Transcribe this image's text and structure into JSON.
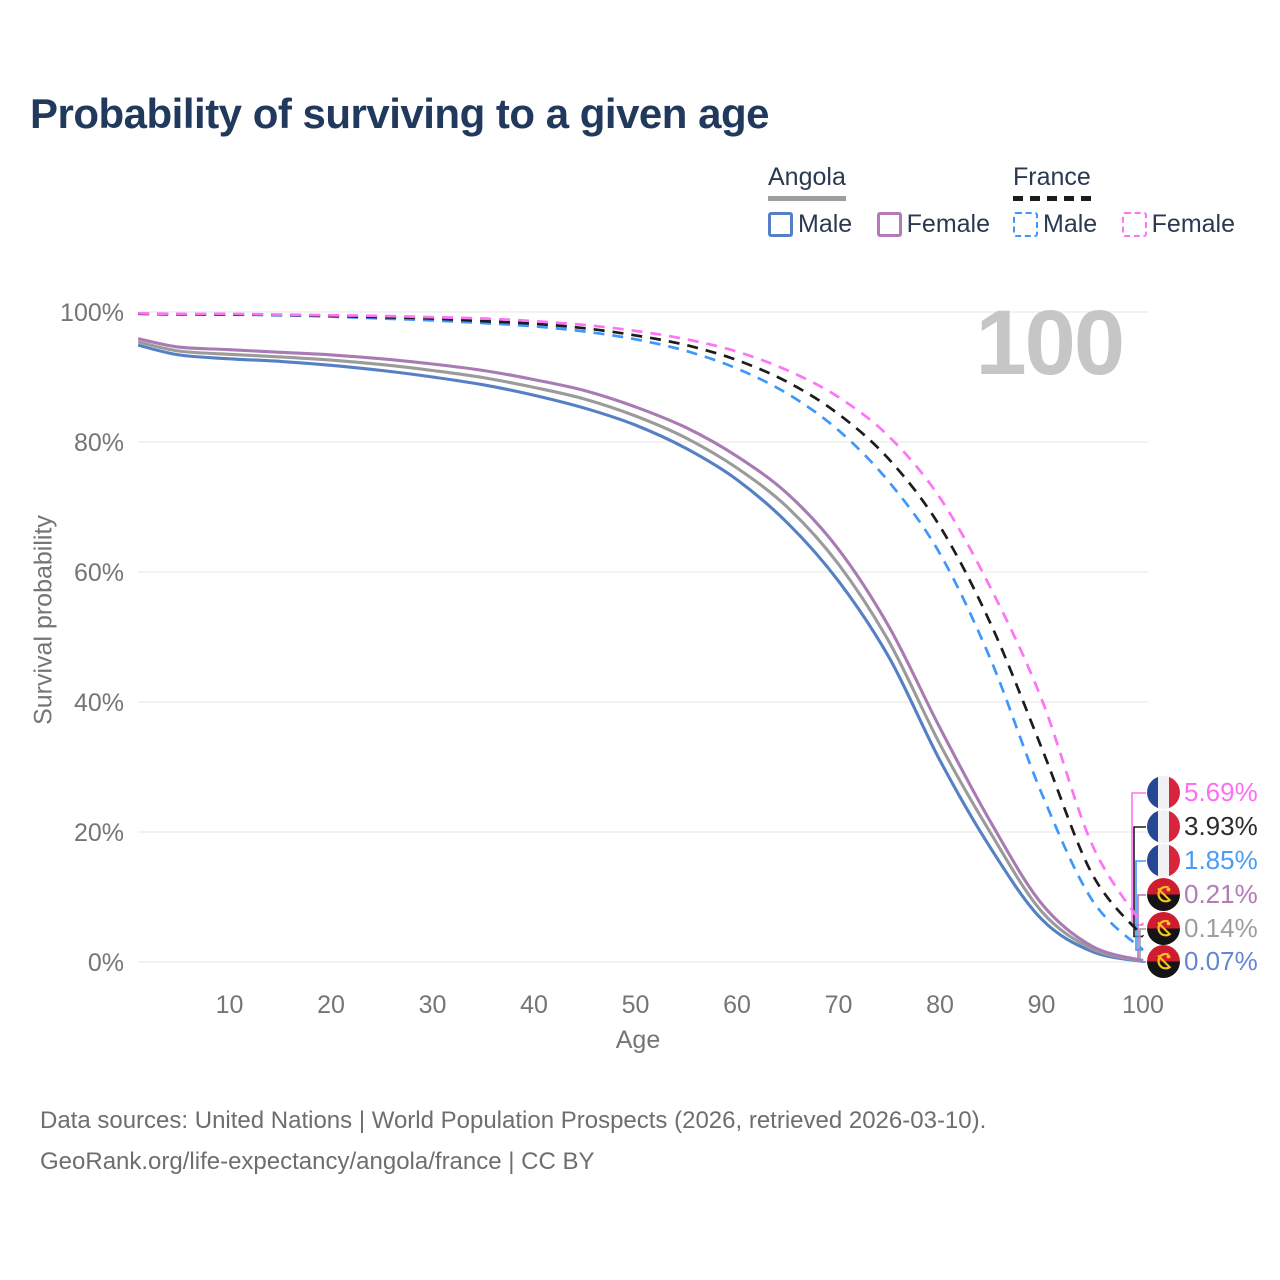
{
  "title": "Probability of surviving to a given age",
  "watermark": "100",
  "legend": {
    "groups": [
      {
        "country": "Angola",
        "line_style": "solid",
        "underline_color": "#9e9e9e",
        "items": [
          {
            "label": "Male",
            "color": "#5580c5"
          },
          {
            "label": "Female",
            "color": "#b379b8"
          }
        ]
      },
      {
        "country": "France",
        "line_style": "dashed",
        "underline_color": "#1c1c1c",
        "items": [
          {
            "label": "Male",
            "color": "#3e97fb"
          },
          {
            "label": "Female",
            "color": "#fe74f7"
          }
        ]
      }
    ]
  },
  "axes": {
    "y_title": "Survival probability",
    "x_title": "Age",
    "y_ticks": [
      {
        "label": "100%",
        "value": 100
      },
      {
        "label": "80%",
        "value": 80
      },
      {
        "label": "60%",
        "value": 60
      },
      {
        "label": "40%",
        "value": 40
      },
      {
        "label": "20%",
        "value": 20
      },
      {
        "label": "0%",
        "value": 0
      }
    ],
    "x_ticks": [
      {
        "label": "10",
        "value": 10
      },
      {
        "label": "20",
        "value": 20
      },
      {
        "label": "30",
        "value": 30
      },
      {
        "label": "40",
        "value": 40
      },
      {
        "label": "50",
        "value": 50
      },
      {
        "label": "60",
        "value": 60
      },
      {
        "label": "70",
        "value": 70
      },
      {
        "label": "80",
        "value": 80
      },
      {
        "label": "90",
        "value": 90
      },
      {
        "label": "100",
        "value": 100
      }
    ]
  },
  "end_labels": [
    {
      "series": "France Female",
      "flag": "france",
      "text": "5.69%",
      "color": "#fe6ef5"
    },
    {
      "series": "France Both sexes",
      "flag": "france",
      "text": "3.93%",
      "color": "#2b2b2b"
    },
    {
      "series": "France Male",
      "flag": "france",
      "text": "1.85%",
      "color": "#4b9bf5"
    },
    {
      "series": "Angola Female",
      "flag": "angola",
      "text": "0.21%",
      "color": "#b57bb5"
    },
    {
      "series": "Angola Both sexes",
      "flag": "angola",
      "text": "0.14%",
      "color": "#9e9e9e"
    },
    {
      "series": "Angola Male",
      "flag": "angola",
      "text": "0.07%",
      "color": "#6487d0"
    }
  ],
  "footer": {
    "line1": "Data sources: United Nations | World Population Prospects (2026, retrieved 2026-03-10).",
    "line2": "GeoRank.org/life-expectancy/angola/france | CC BY"
  },
  "chart_data": {
    "type": "line",
    "title": "Probability of surviving to a given age",
    "xlabel": "Age",
    "ylabel": "Survival probability",
    "xlim": [
      1,
      100
    ],
    "ylim": [
      0,
      100
    ],
    "grid": "horizontal",
    "x": [
      1,
      5,
      10,
      15,
      20,
      25,
      30,
      35,
      40,
      45,
      50,
      55,
      60,
      65,
      70,
      75,
      80,
      85,
      90,
      95,
      100
    ],
    "series": [
      {
        "name": "Angola Male",
        "country": "Angola",
        "sex": "Male",
        "color": "#5580c5",
        "dashed": false,
        "survival_at_100_pct": 0.07,
        "values": [
          94.9,
          93.4,
          92.8,
          92.4,
          91.8,
          91.0,
          90.0,
          88.8,
          87.2,
          85.2,
          82.6,
          79.0,
          74.2,
          67.5,
          58.6,
          46.8,
          31.0,
          17.5,
          6.6,
          1.6,
          0.07
        ]
      },
      {
        "name": "Angola Both sexes",
        "country": "Angola",
        "sex": "Both sexes",
        "color": "#9b9b9b",
        "dashed": false,
        "survival_at_100_pct": 0.14,
        "values": [
          95.4,
          94.0,
          93.5,
          93.1,
          92.6,
          91.9,
          91.0,
          89.9,
          88.4,
          86.6,
          84.0,
          80.6,
          76.0,
          69.9,
          61.2,
          49.2,
          33.5,
          19.8,
          7.8,
          2.0,
          0.14
        ]
      },
      {
        "name": "Angola Female",
        "country": "Angola",
        "sex": "Female",
        "color": "#a97bb4",
        "dashed": false,
        "survival_at_100_pct": 0.21,
        "values": [
          95.9,
          94.6,
          94.2,
          93.8,
          93.4,
          92.8,
          92.0,
          91.0,
          89.6,
          87.9,
          85.4,
          82.2,
          77.8,
          72.0,
          63.5,
          51.5,
          36.0,
          21.5,
          9.0,
          2.4,
          0.21
        ]
      },
      {
        "name": "France Male",
        "country": "France",
        "sex": "Male",
        "color": "#3e97fb",
        "dashed": true,
        "survival_at_100_pct": 1.85,
        "values": [
          99.7,
          99.6,
          99.6,
          99.5,
          99.3,
          99.0,
          98.7,
          98.3,
          97.8,
          97.0,
          95.8,
          94.0,
          91.3,
          87.4,
          81.8,
          73.8,
          62.8,
          46.5,
          26.0,
          9.5,
          1.85
        ]
      },
      {
        "name": "France Both sexes",
        "country": "France",
        "sex": "Both sexes",
        "color": "#1c1c1c",
        "dashed": true,
        "survival_at_100_pct": 3.93,
        "values": [
          99.75,
          99.65,
          99.6,
          99.55,
          99.4,
          99.2,
          99.0,
          98.6,
          98.2,
          97.5,
          96.4,
          94.9,
          92.6,
          89.2,
          84.3,
          77.3,
          67.0,
          52.0,
          33.0,
          13.5,
          3.93
        ]
      },
      {
        "name": "France Female",
        "country": "France",
        "sex": "Female",
        "color": "#fe74f7",
        "dashed": true,
        "survival_at_100_pct": 5.69,
        "values": [
          99.8,
          99.7,
          99.7,
          99.6,
          99.5,
          99.4,
          99.2,
          99.0,
          98.6,
          98.0,
          97.1,
          95.8,
          93.9,
          91.0,
          86.9,
          80.8,
          71.4,
          57.5,
          40.5,
          18.0,
          5.69
        ]
      }
    ]
  }
}
